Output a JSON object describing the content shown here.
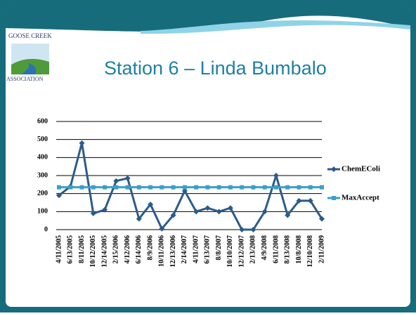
{
  "logo": {
    "top": "GOOSE CREEK",
    "bottom": "ASSOCIATION"
  },
  "chart_data": {
    "type": "line",
    "title": "Station 6 – Linda Bumbalo",
    "categories": [
      "4/11/2005",
      "6/13/2005",
      "8/11/2005",
      "10/12/2005",
      "12/14/2005",
      "2/15/2006",
      "4/12/2006",
      "6/14/2006",
      "8/9/2006",
      "10/11/2006",
      "12/13/2006",
      "2/14/2007",
      "4/11/2007",
      "6/13/2007",
      "8/8/2007",
      "10/10/2007",
      "12/12/2007",
      "2/13/2008",
      "4/9/2008",
      "6/11/2008",
      "8/13/2008",
      "10/8/2008",
      "12/10/2008",
      "2/11/2009"
    ],
    "series": [
      {
        "name": "ChemEColi",
        "color": "#2c5b8a",
        "marker": "diamond",
        "values": [
          190,
          240,
          480,
          90,
          110,
          270,
          285,
          60,
          140,
          5,
          80,
          215,
          100,
          120,
          100,
          120,
          0,
          0,
          100,
          300,
          80,
          160,
          160,
          60
        ]
      },
      {
        "name": "MaxAccept",
        "color": "#3a9fc9",
        "marker": "square",
        "values": [
          235,
          235,
          235,
          235,
          235,
          235,
          235,
          235,
          235,
          235,
          235,
          235,
          235,
          235,
          235,
          235,
          235,
          235,
          235,
          235,
          235,
          235,
          235,
          235
        ]
      }
    ],
    "ylim": [
      0,
      600
    ],
    "yticks": [
      0,
      100,
      200,
      300,
      400,
      500,
      600
    ],
    "grid": true,
    "legend": "right"
  }
}
